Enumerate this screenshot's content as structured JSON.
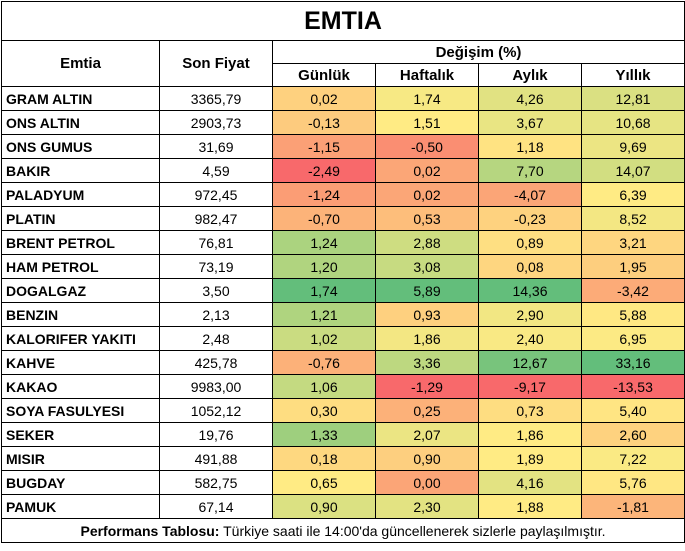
{
  "title": "EMTIA",
  "headers": {
    "commodity": "Emtia",
    "last_price": "Son Fiyat",
    "change_group": "Değişim (%)",
    "daily": "Günlük",
    "weekly": "Haftalık",
    "monthly": "Aylık",
    "yearly": "Yıllık"
  },
  "rows": [
    {
      "name": "GRAM ALTIN",
      "price": "3365,79",
      "daily": "0,02",
      "weekly": "1,74",
      "monthly": "4,26",
      "yearly": "12,81"
    },
    {
      "name": "ONS ALTIN",
      "price": "2903,73",
      "daily": "-0,13",
      "weekly": "1,51",
      "monthly": "3,67",
      "yearly": "10,68"
    },
    {
      "name": "ONS GUMUS",
      "price": "31,69",
      "daily": "-1,15",
      "weekly": "-0,50",
      "monthly": "1,18",
      "yearly": "9,69"
    },
    {
      "name": "BAKIR",
      "price": "4,59",
      "daily": "-2,49",
      "weekly": "0,02",
      "monthly": "7,70",
      "yearly": "14,07"
    },
    {
      "name": "PALADYUM",
      "price": "972,45",
      "daily": "-1,24",
      "weekly": "0,02",
      "monthly": "-4,07",
      "yearly": "6,39"
    },
    {
      "name": "PLATIN",
      "price": "982,47",
      "daily": "-0,70",
      "weekly": "0,53",
      "monthly": "-0,23",
      "yearly": "8,52"
    },
    {
      "name": "BRENT PETROL",
      "price": "76,81",
      "daily": "1,24",
      "weekly": "2,88",
      "monthly": "0,89",
      "yearly": "3,21"
    },
    {
      "name": "HAM PETROL",
      "price": "73,19",
      "daily": "1,20",
      "weekly": "3,08",
      "monthly": "0,08",
      "yearly": "1,95"
    },
    {
      "name": "DOGALGAZ",
      "price": "3,50",
      "daily": "1,74",
      "weekly": "5,89",
      "monthly": "14,36",
      "yearly": "-3,42"
    },
    {
      "name": "BENZIN",
      "price": "2,13",
      "daily": "1,21",
      "weekly": "0,93",
      "monthly": "2,90",
      "yearly": "5,88"
    },
    {
      "name": "KALORIFER YAKITI",
      "price": "2,48",
      "daily": "1,02",
      "weekly": "1,86",
      "monthly": "2,40",
      "yearly": "6,95"
    },
    {
      "name": "KAHVE",
      "price": "425,78",
      "daily": "-0,76",
      "weekly": "3,36",
      "monthly": "12,67",
      "yearly": "33,16"
    },
    {
      "name": "KAKAO",
      "price": "9983,00",
      "daily": "1,06",
      "weekly": "-1,29",
      "monthly": "-9,17",
      "yearly": "-13,53"
    },
    {
      "name": "SOYA FASULYESI",
      "price": "1052,12",
      "daily": "0,30",
      "weekly": "0,25",
      "monthly": "0,73",
      "yearly": "5,40"
    },
    {
      "name": "SEKER",
      "price": "19,76",
      "daily": "1,33",
      "weekly": "2,07",
      "monthly": "1,86",
      "yearly": "2,60"
    },
    {
      "name": "MISIR",
      "price": "491,88",
      "daily": "0,18",
      "weekly": "0,90",
      "monthly": "1,89",
      "yearly": "7,22"
    },
    {
      "name": "BUGDAY",
      "price": "582,75",
      "daily": "0,65",
      "weekly": "0,00",
      "monthly": "4,16",
      "yearly": "5,76"
    },
    {
      "name": "PAMUK",
      "price": "67,14",
      "daily": "0,90",
      "weekly": "2,30",
      "monthly": "1,88",
      "yearly": "-1,81"
    }
  ],
  "footer": {
    "label": "Performans Tablosu:",
    "text": " Türkiye saati ile 14:00'da güncellenerek sizlerle paylaşılmıştır."
  }
}
